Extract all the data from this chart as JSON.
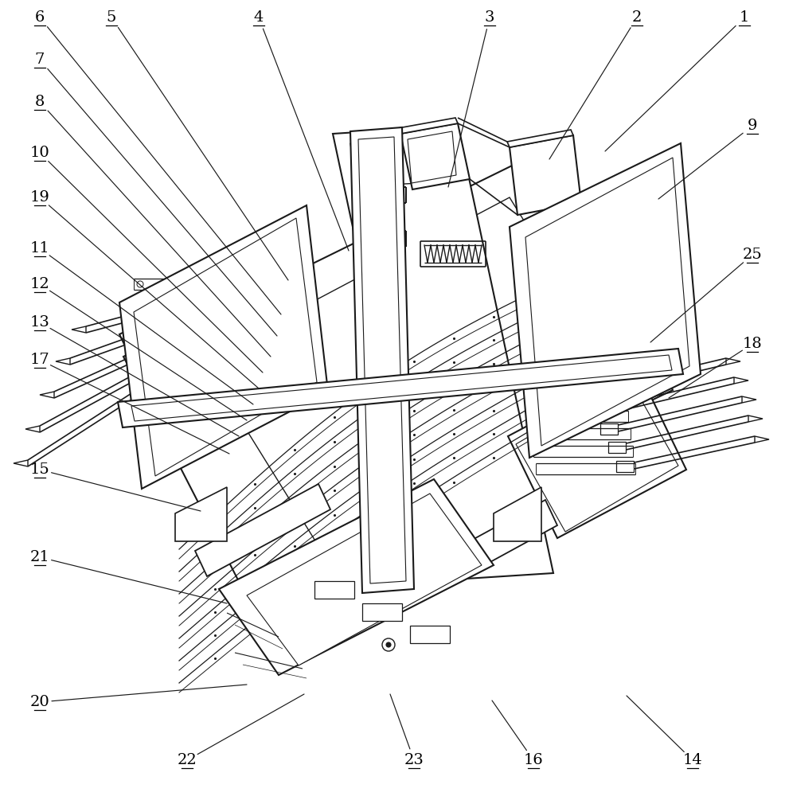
{
  "background_color": "#ffffff",
  "line_color": "#1a1a1a",
  "text_color": "#000000",
  "figure_width": 9.86,
  "figure_height": 10.0,
  "dpi": 100,
  "labels_info": [
    [
      "1",
      935,
      22,
      760,
      190
    ],
    [
      "2",
      800,
      22,
      690,
      200
    ],
    [
      "3",
      615,
      22,
      563,
      235
    ],
    [
      "4",
      325,
      22,
      438,
      315
    ],
    [
      "5",
      140,
      22,
      362,
      352
    ],
    [
      "6",
      50,
      22,
      353,
      395
    ],
    [
      "7",
      50,
      75,
      348,
      422
    ],
    [
      "8",
      50,
      128,
      340,
      448
    ],
    [
      "10",
      50,
      192,
      330,
      468
    ],
    [
      "19",
      50,
      248,
      325,
      488
    ],
    [
      "11",
      50,
      312,
      318,
      508
    ],
    [
      "12",
      50,
      357,
      310,
      528
    ],
    [
      "13",
      50,
      405,
      300,
      548
    ],
    [
      "17",
      50,
      452,
      288,
      570
    ],
    [
      "15",
      50,
      590,
      252,
      642
    ],
    [
      "21",
      50,
      700,
      285,
      758
    ],
    [
      "20",
      50,
      882,
      310,
      860
    ],
    [
      "22",
      235,
      955,
      382,
      872
    ],
    [
      "23",
      520,
      955,
      490,
      872
    ],
    [
      "16",
      670,
      955,
      618,
      880
    ],
    [
      "14",
      870,
      955,
      787,
      874
    ],
    [
      "9",
      945,
      158,
      827,
      250
    ],
    [
      "25",
      945,
      320,
      817,
      430
    ],
    [
      "18",
      945,
      432,
      840,
      500
    ]
  ]
}
